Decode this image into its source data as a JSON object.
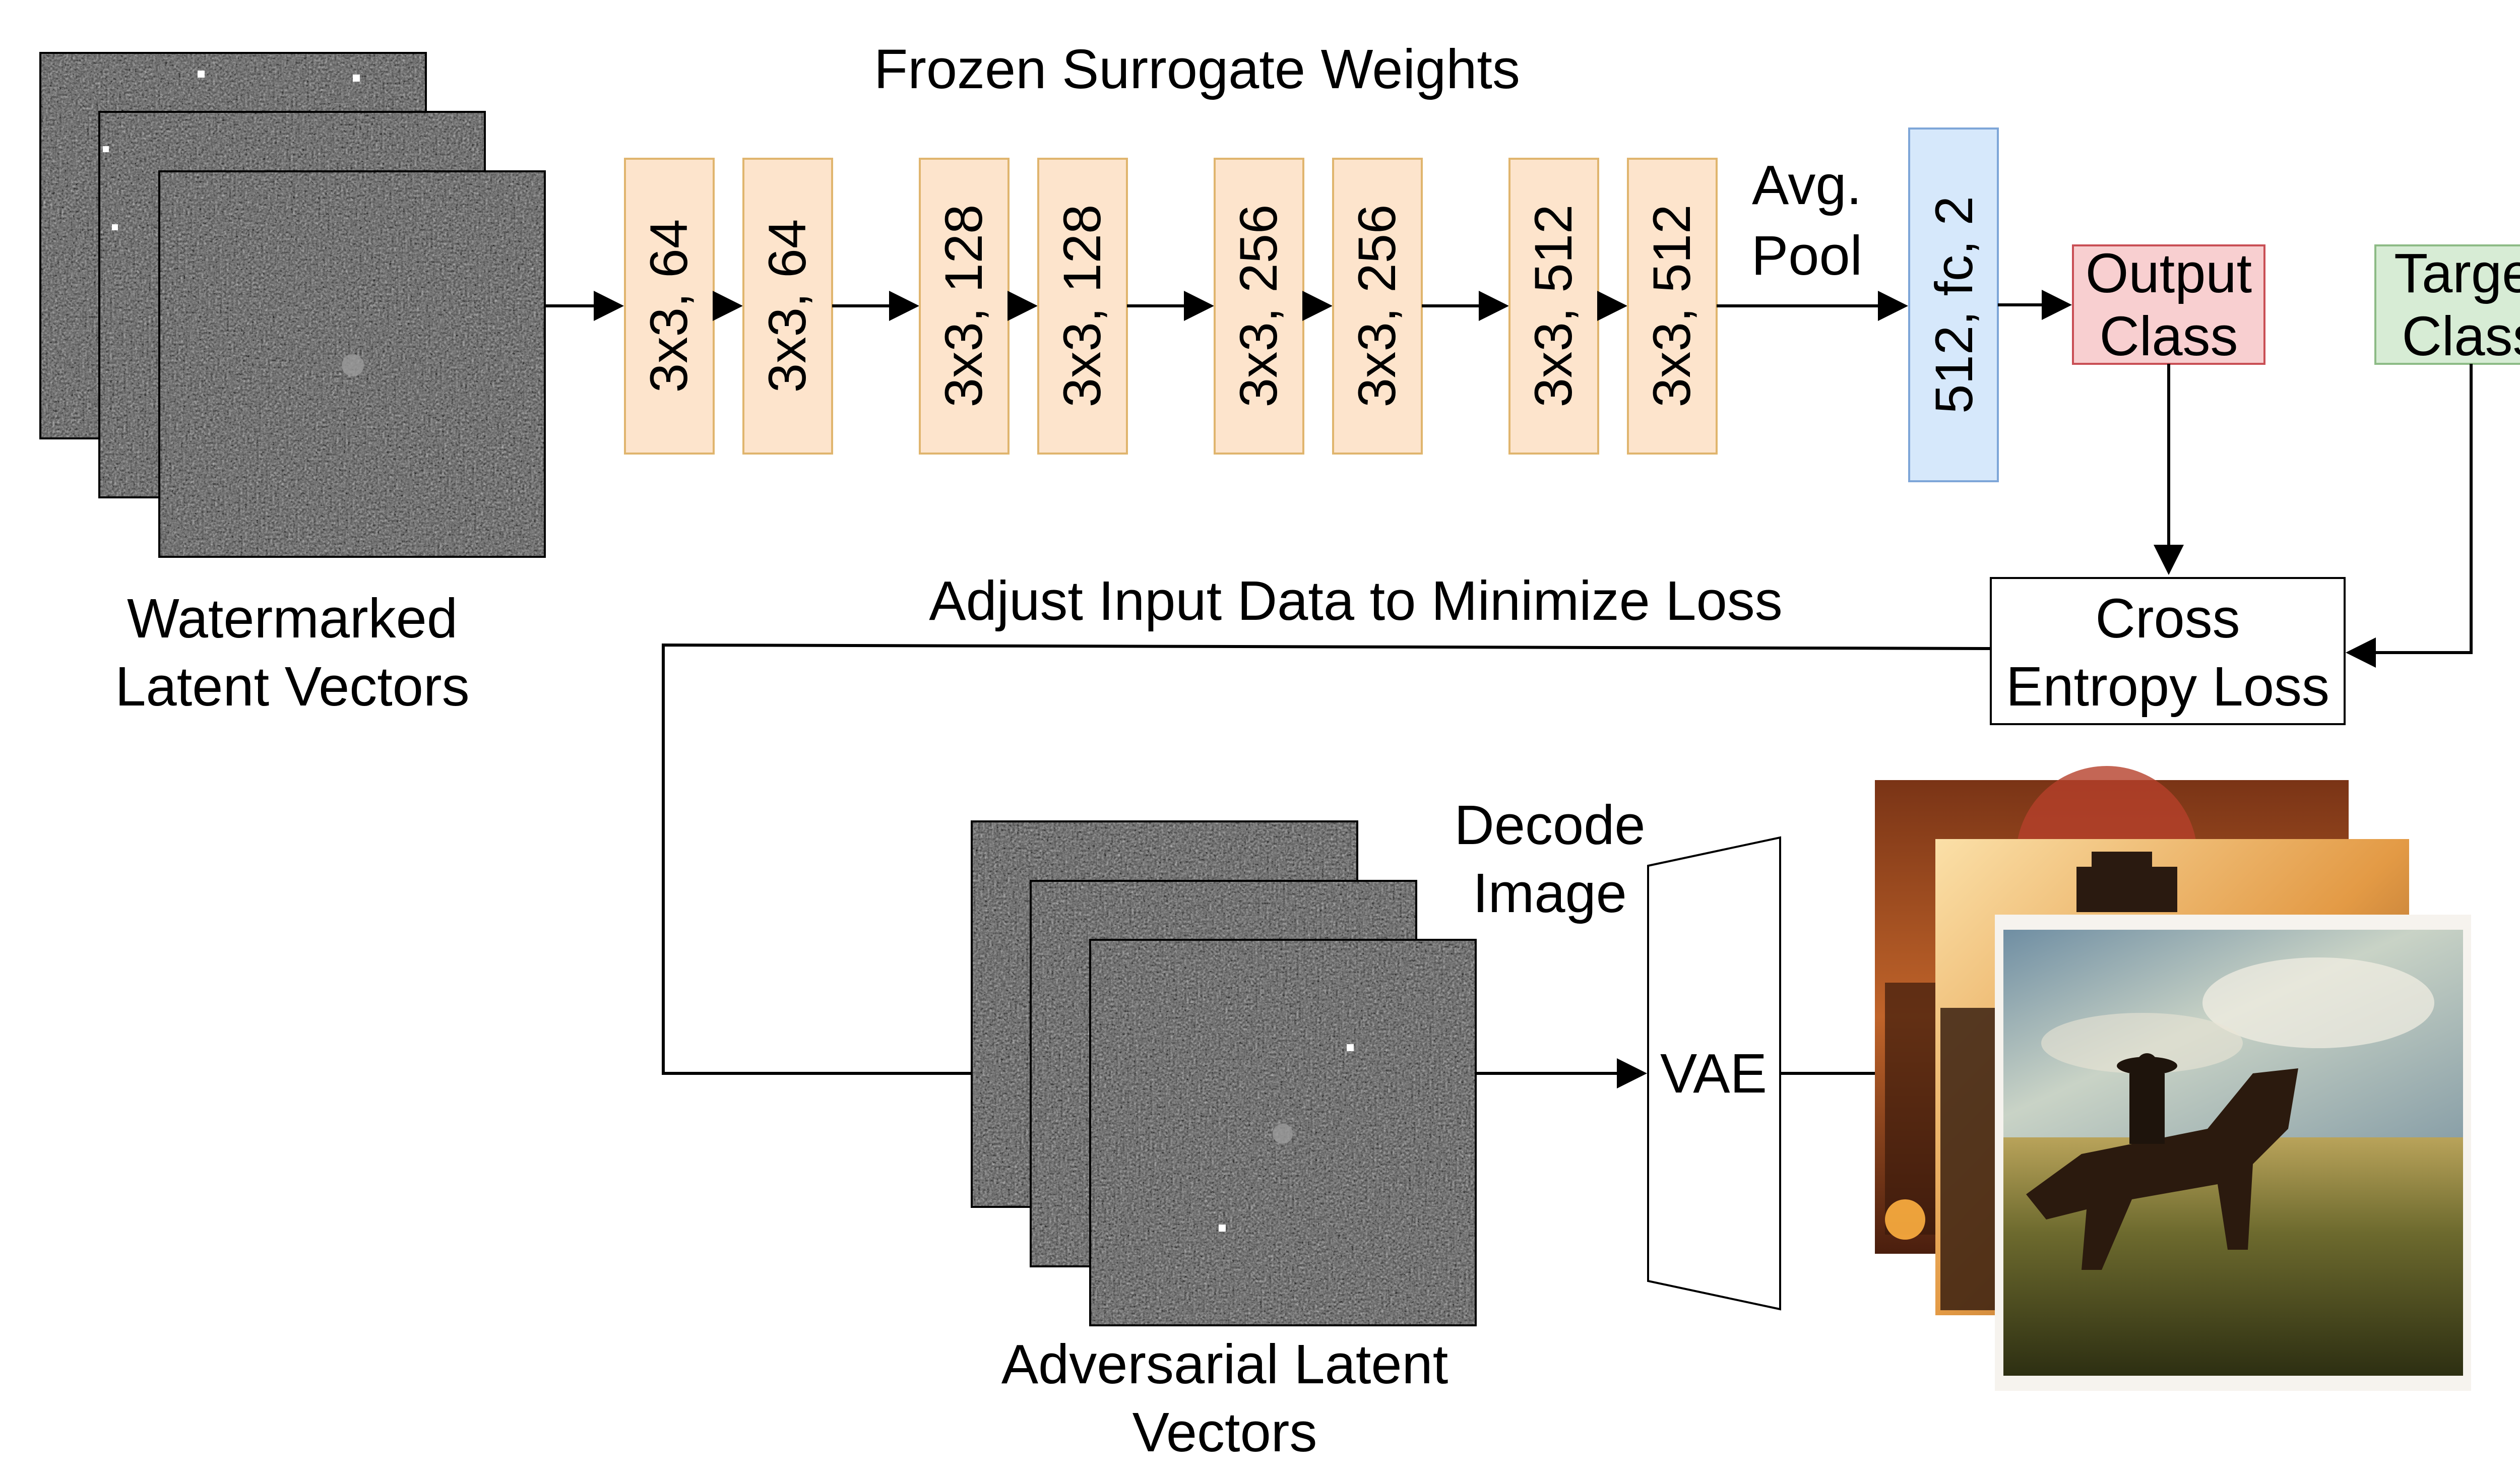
{
  "title": "Frozen Surrogate Weights",
  "input": {
    "label_line1": "Watermarked",
    "label_line2": "Latent Vectors"
  },
  "layers": [
    {
      "label": "3x3, 64"
    },
    {
      "label": "3x3, 64"
    },
    {
      "label": "3x3, 128"
    },
    {
      "label": "3x3, 128"
    },
    {
      "label": "3x3, 256"
    },
    {
      "label": "3x3, 256"
    },
    {
      "label": "3x3, 512"
    },
    {
      "label": "3x3, 512"
    }
  ],
  "pool": {
    "line1": "Avg.",
    "line2": "Pool"
  },
  "fc": {
    "label": "512, fc, 2"
  },
  "output": {
    "line1": "Output",
    "line2": "Class"
  },
  "target": {
    "line1": "Target",
    "line2": "Class"
  },
  "loss": {
    "line1": "Cross",
    "line2": "Entropy Loss"
  },
  "feedback": {
    "label": "Adjust Input Data to Minimize Loss"
  },
  "adversarial": {
    "line1": "Adversarial Latent",
    "line2": "Vectors"
  },
  "decode": {
    "line1": "Decode",
    "line2": "Image"
  },
  "vae": {
    "label": "VAE"
  },
  "colors": {
    "layer_fill": "#fde4cc",
    "layer_stroke": "#e0b56e",
    "fc_fill": "#d6e8fb",
    "fc_stroke": "#7ea6d8",
    "output_fill": "#f8cfd0",
    "output_stroke": "#c94f55",
    "target_fill": "#d7ecd5",
    "target_stroke": "#8dbb86",
    "noise_base": "#555555"
  }
}
